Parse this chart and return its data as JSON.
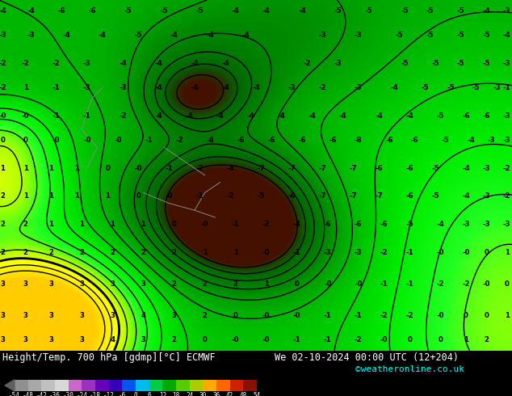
{
  "title_left": "Height/Temp. 700 hPa [gdmp][°C] ECMWF",
  "title_right": "We 02-10-2024 00:00 UTC (12+204)",
  "credit": "©weatheronline.co.uk",
  "colorbar_levels": [
    -54,
    -48,
    -42,
    -36,
    -30,
    -24,
    -18,
    -12,
    -6,
    0,
    6,
    12,
    18,
    24,
    30,
    36,
    42,
    48,
    54
  ],
  "colorbar_colors": [
    "#909090",
    "#a8a8a8",
    "#c0c0c0",
    "#d8d8d8",
    "#cc66cc",
    "#9933bb",
    "#6600bb",
    "#3300bb",
    "#0055ee",
    "#00bbee",
    "#00cc44",
    "#00aa00",
    "#55cc00",
    "#aacc00",
    "#ffaa00",
    "#ff6600",
    "#cc2200",
    "#881100"
  ],
  "map_green": "#00dd00",
  "map_green_dark": "#00aa00",
  "map_yellow": "#ffee00",
  "map_olive": "#88aa44",
  "figsize": [
    6.34,
    4.9
  ],
  "dpi": 100,
  "label_color": "#000000",
  "contour_color": "#000000",
  "contour_color2": "#ffffff"
}
